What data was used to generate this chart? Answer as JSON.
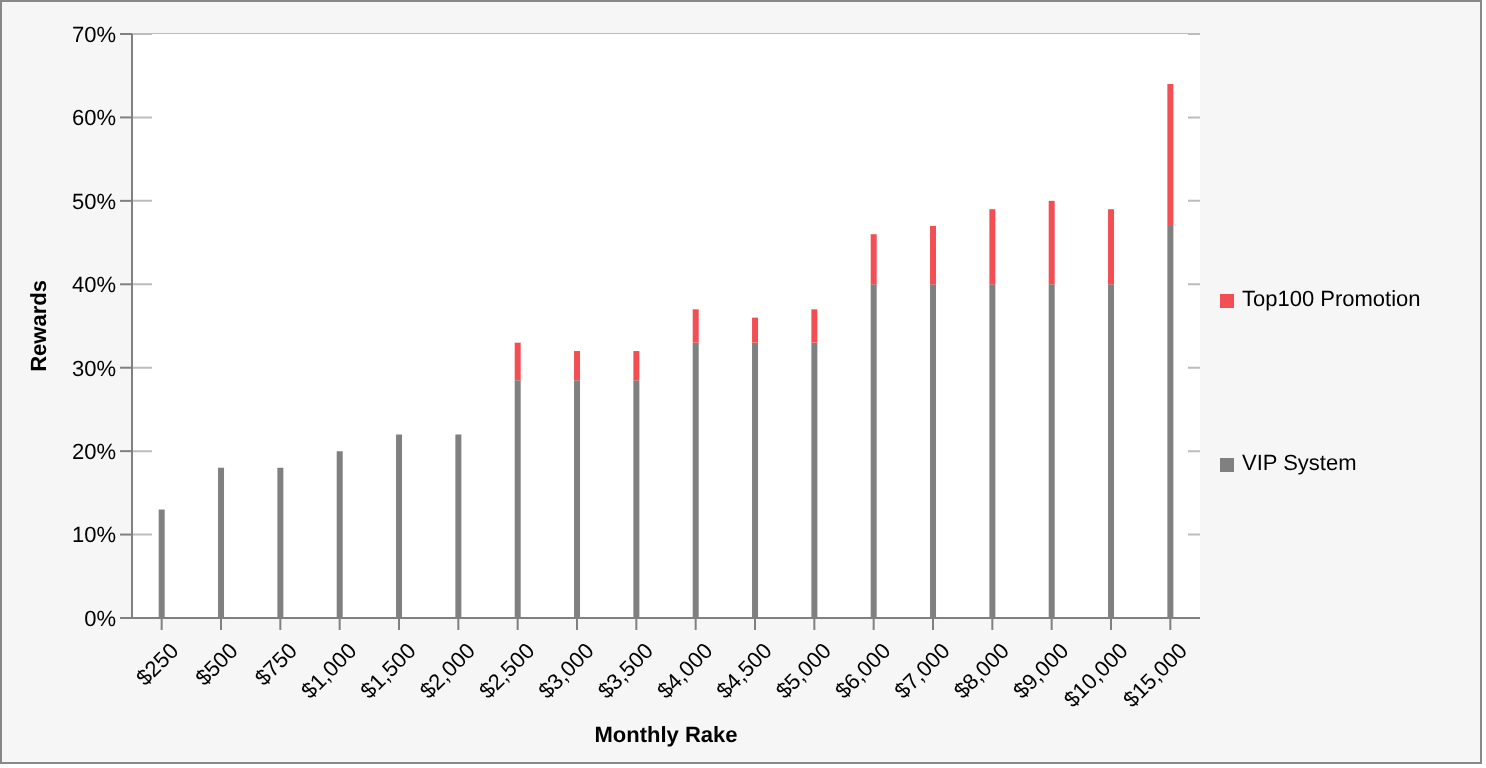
{
  "chart_data": {
    "type": "bar",
    "stacked": true,
    "xlabel": "Monthly Rake",
    "ylabel": "Rewards",
    "categories": [
      "$250",
      "$500",
      "$750",
      "$1,000",
      "$1,500",
      "$2,000",
      "$2,500",
      "$3,000",
      "$3,500",
      "$4,000",
      "$4,500",
      "$5,000",
      "$6,000",
      "$7,000",
      "$8,000",
      "$9,000",
      "$10,000",
      "$15,000"
    ],
    "series": [
      {
        "name": "VIP System",
        "color": "#808080",
        "values": [
          13,
          18,
          18,
          20,
          22,
          22,
          28.5,
          28.5,
          28.5,
          33,
          33,
          33,
          40,
          40,
          40,
          40,
          40,
          47
        ]
      },
      {
        "name": "Top100 Promotion",
        "color": "#f34e54",
        "values": [
          null,
          null,
          null,
          null,
          null,
          null,
          4.5,
          3.5,
          3.5,
          4,
          3,
          4,
          6,
          7,
          9,
          10,
          9,
          17
        ]
      }
    ],
    "ylim": [
      0,
      70
    ],
    "yticks": [
      {
        "value": 0,
        "label": "0%"
      },
      {
        "value": 10,
        "label": "10%"
      },
      {
        "value": 20,
        "label": "20%"
      },
      {
        "value": 30,
        "label": "30%"
      },
      {
        "value": 40,
        "label": "40%"
      },
      {
        "value": 50,
        "label": "50%"
      },
      {
        "value": 60,
        "label": "60%"
      },
      {
        "value": 70,
        "label": "70%"
      }
    ],
    "grid": "y",
    "legend": "right"
  }
}
